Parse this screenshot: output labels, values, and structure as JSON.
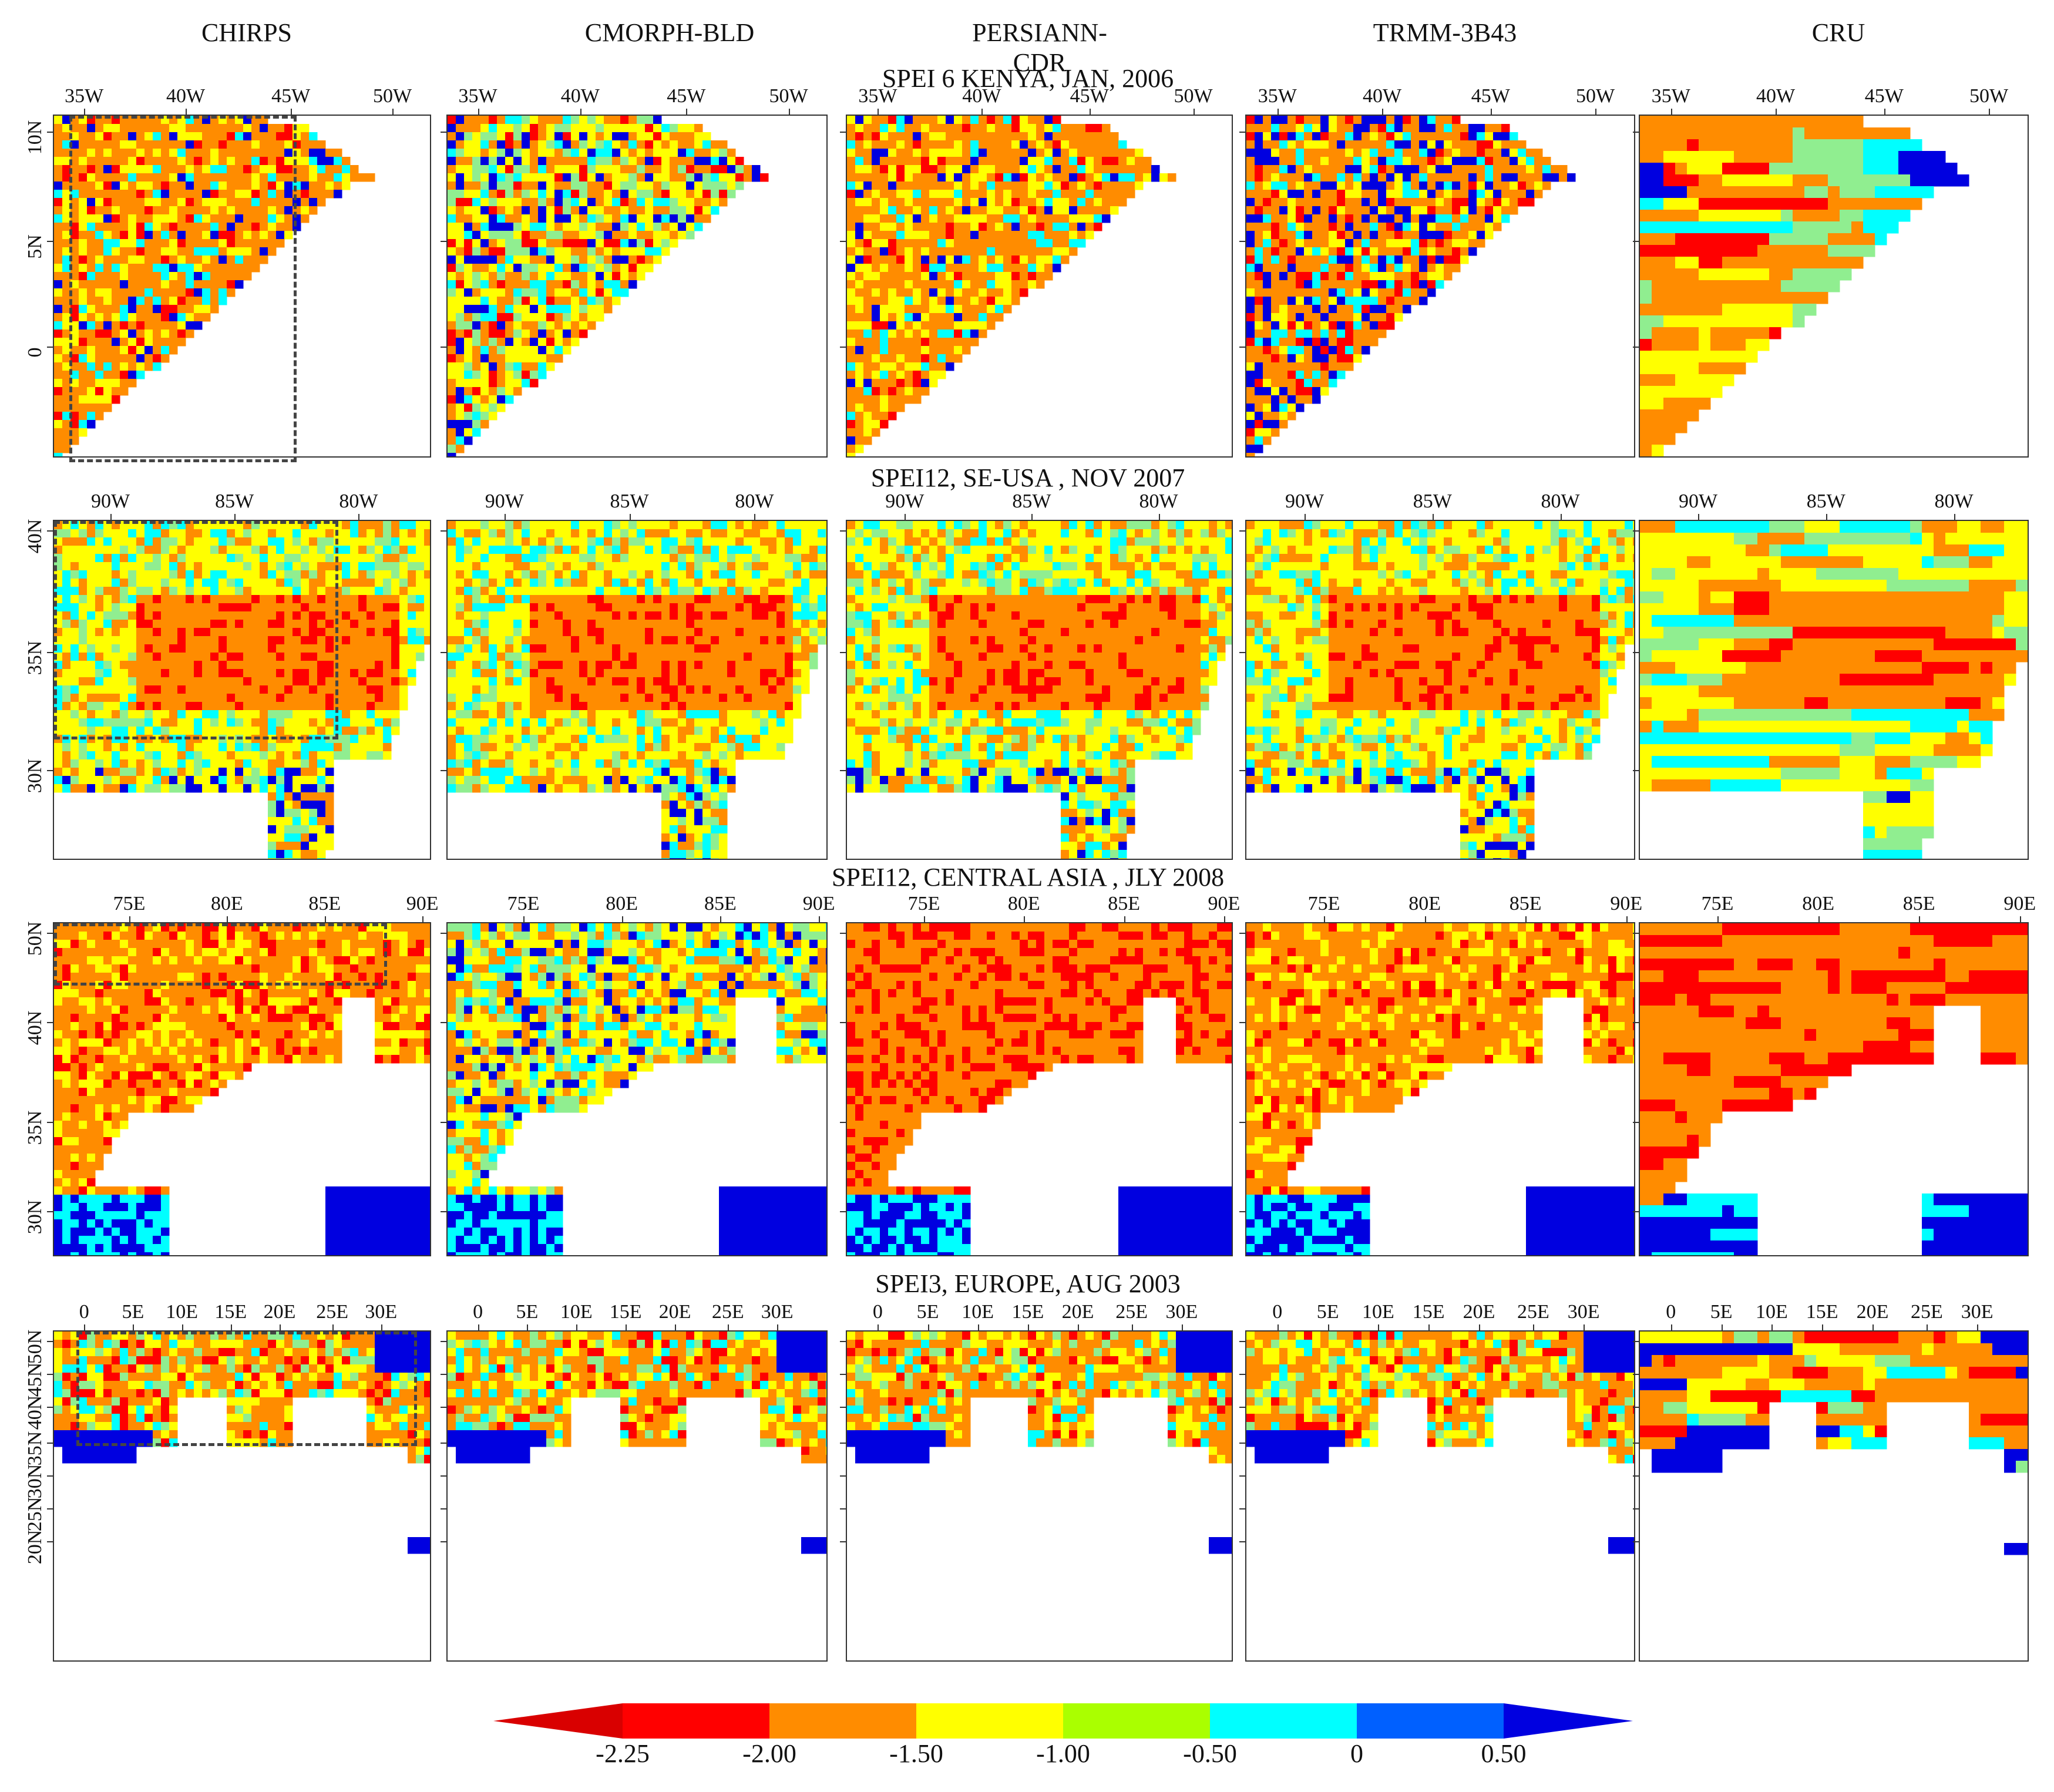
{
  "columns": [
    "CHIRPS",
    "CMORPH-BLD",
    "PERSIANN-CDR",
    "TRMM-3B43",
    "CRU"
  ],
  "rows": [
    {
      "title": "SPEI 6 KENYA, JAN, 2006",
      "top_ticks": [
        "35W",
        "40W",
        "45W",
        "50W"
      ],
      "left_ticks": [
        "10N",
        "5N",
        "0"
      ],
      "dominant": "orange"
    },
    {
      "title": "SPEI12, SE-USA , NOV 2007",
      "top_ticks": [
        "90W",
        "85W",
        "80W"
      ],
      "left_ticks": [
        "40N",
        "35N",
        "30N"
      ],
      "dominant": "orange"
    },
    {
      "title": "SPEI12, CENTRAL ASIA , JLY 2008",
      "top_ticks": [
        "75E",
        "80E",
        "85E",
        "90E"
      ],
      "left_ticks": [
        "50N",
        "40N",
        "35N",
        "30N"
      ],
      "dominant": "orange"
    },
    {
      "title": "SPEI3, EUROPE, AUG 2003",
      "top_ticks": [
        "0",
        "5E",
        "10E",
        "15E",
        "20E",
        "25E",
        "30E"
      ],
      "left_ticks": [
        "50N",
        "45N",
        "40N",
        "35N",
        "30N",
        "25N",
        "20N"
      ],
      "dominant": "mixed"
    }
  ],
  "colorbar": {
    "labels": [
      "-2.25",
      "-2.00",
      "-1.50",
      "-1.00",
      "-0.50",
      "0",
      "0.50"
    ],
    "colors": [
      "#d90000",
      "#ff0000",
      "#ff8c00",
      "#ffff00",
      "#aaff00",
      "#00ffff",
      "#0060ff",
      "#0000e0"
    ]
  },
  "palette": {
    "red": "#ff0000",
    "orange": "#ff8c00",
    "yellow": "#ffff00",
    "lightgreen": "#90ee90",
    "cyan": "#00ffff",
    "blue": "#0000e0",
    "white": "#ffffff"
  }
}
